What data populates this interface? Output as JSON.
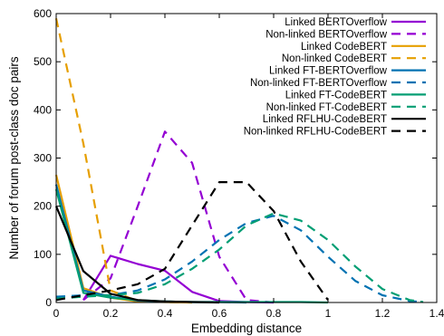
{
  "chart_data": {
    "type": "line",
    "xlabel": "Embedding distance",
    "ylabel": "Number of forum post-class doc pairs",
    "xlim": [
      0,
      1.4
    ],
    "ylim": [
      0,
      600
    ],
    "x_ticks": [
      "0",
      "0.2",
      "0.4",
      "0.6",
      "0.8",
      "1",
      "1.2",
      "1.4"
    ],
    "y_ticks": [
      "0",
      "100",
      "200",
      "300",
      "400",
      "500",
      "600"
    ],
    "legend_position": "top-right",
    "grid": false,
    "series": [
      {
        "name": "Linked BERTOverflow",
        "color": "#9400d3",
        "dash": "solid",
        "points": [
          [
            0.1,
            5
          ],
          [
            0.2,
            97
          ],
          [
            0.3,
            80
          ],
          [
            0.4,
            66
          ],
          [
            0.5,
            22
          ],
          [
            0.6,
            3
          ],
          [
            0.7,
            1
          ],
          [
            0.8,
            0
          ]
        ]
      },
      {
        "name": "Non-linked BERTOverflow",
        "color": "#9400d3",
        "dash": "dashed",
        "points": [
          [
            0.1,
            5
          ],
          [
            0.2,
            50
          ],
          [
            0.3,
            200
          ],
          [
            0.4,
            355
          ],
          [
            0.5,
            290
          ],
          [
            0.6,
            95
          ],
          [
            0.7,
            5
          ],
          [
            0.8,
            0
          ]
        ]
      },
      {
        "name": "Linked CodeBERT",
        "color": "#e69f00",
        "dash": "solid",
        "points": [
          [
            0,
            265
          ],
          [
            0.1,
            30
          ],
          [
            0.2,
            10
          ],
          [
            0.3,
            2
          ],
          [
            0.4,
            1
          ],
          [
            0.5,
            0
          ]
        ]
      },
      {
        "name": "Non-linked CodeBERT",
        "color": "#e69f00",
        "dash": "dashed",
        "points": [
          [
            0,
            590
          ],
          [
            0.1,
            330
          ],
          [
            0.2,
            25
          ],
          [
            0.3,
            3
          ],
          [
            0.4,
            1
          ],
          [
            0.5,
            0
          ]
        ]
      },
      {
        "name": "Linked FT-BERTOverflow",
        "color": "#0072b2",
        "dash": "solid",
        "points": [
          [
            0,
            245
          ],
          [
            0.1,
            25
          ],
          [
            0.2,
            12
          ],
          [
            0.3,
            4
          ],
          [
            0.4,
            2
          ],
          [
            0.5,
            1
          ],
          [
            0.6,
            1
          ],
          [
            0.7,
            0
          ]
        ]
      },
      {
        "name": "Non-linked FT-BERTOverflow",
        "color": "#0072b2",
        "dash": "dashed",
        "points": [
          [
            0,
            12
          ],
          [
            0.1,
            15
          ],
          [
            0.2,
            15
          ],
          [
            0.3,
            25
          ],
          [
            0.4,
            48
          ],
          [
            0.5,
            85
          ],
          [
            0.6,
            130
          ],
          [
            0.7,
            165
          ],
          [
            0.8,
            180
          ],
          [
            0.9,
            150
          ],
          [
            1.0,
            95
          ],
          [
            1.1,
            45
          ],
          [
            1.2,
            15
          ],
          [
            1.3,
            3
          ],
          [
            1.35,
            1
          ]
        ]
      },
      {
        "name": "Linked FT-CodeBERT",
        "color": "#009e73",
        "dash": "solid",
        "points": [
          [
            0,
            235
          ],
          [
            0.1,
            20
          ],
          [
            0.2,
            10
          ],
          [
            0.3,
            5
          ],
          [
            0.4,
            2
          ],
          [
            0.5,
            1
          ],
          [
            0.6,
            1
          ],
          [
            0.7,
            1
          ],
          [
            0.8,
            1
          ],
          [
            0.9,
            1
          ],
          [
            1.0,
            0
          ]
        ]
      },
      {
        "name": "Non-linked FT-CodeBERT",
        "color": "#009e73",
        "dash": "dashed",
        "points": [
          [
            0,
            8
          ],
          [
            0.1,
            12
          ],
          [
            0.2,
            15
          ],
          [
            0.3,
            20
          ],
          [
            0.4,
            38
          ],
          [
            0.5,
            70
          ],
          [
            0.6,
            110
          ],
          [
            0.7,
            160
          ],
          [
            0.8,
            185
          ],
          [
            0.9,
            170
          ],
          [
            1.0,
            130
          ],
          [
            1.1,
            75
          ],
          [
            1.2,
            28
          ],
          [
            1.3,
            5
          ],
          [
            1.35,
            1
          ]
        ]
      },
      {
        "name": "Linked RFLHU-CodeBERT",
        "color": "#000000",
        "dash": "solid",
        "points": [
          [
            0,
            200
          ],
          [
            0.1,
            65
          ],
          [
            0.2,
            18
          ],
          [
            0.3,
            5
          ],
          [
            0.4,
            2
          ],
          [
            0.5,
            1
          ],
          [
            0.6,
            0
          ]
        ]
      },
      {
        "name": "Non-linked RFLHU-CodeBERT",
        "color": "#000000",
        "dash": "dashed",
        "points": [
          [
            0,
            5
          ],
          [
            0.1,
            15
          ],
          [
            0.2,
            25
          ],
          [
            0.3,
            38
          ],
          [
            0.4,
            70
          ],
          [
            0.5,
            160
          ],
          [
            0.6,
            250
          ],
          [
            0.7,
            250
          ],
          [
            0.8,
            190
          ],
          [
            0.9,
            85
          ],
          [
            1.0,
            5
          ]
        ]
      }
    ]
  }
}
